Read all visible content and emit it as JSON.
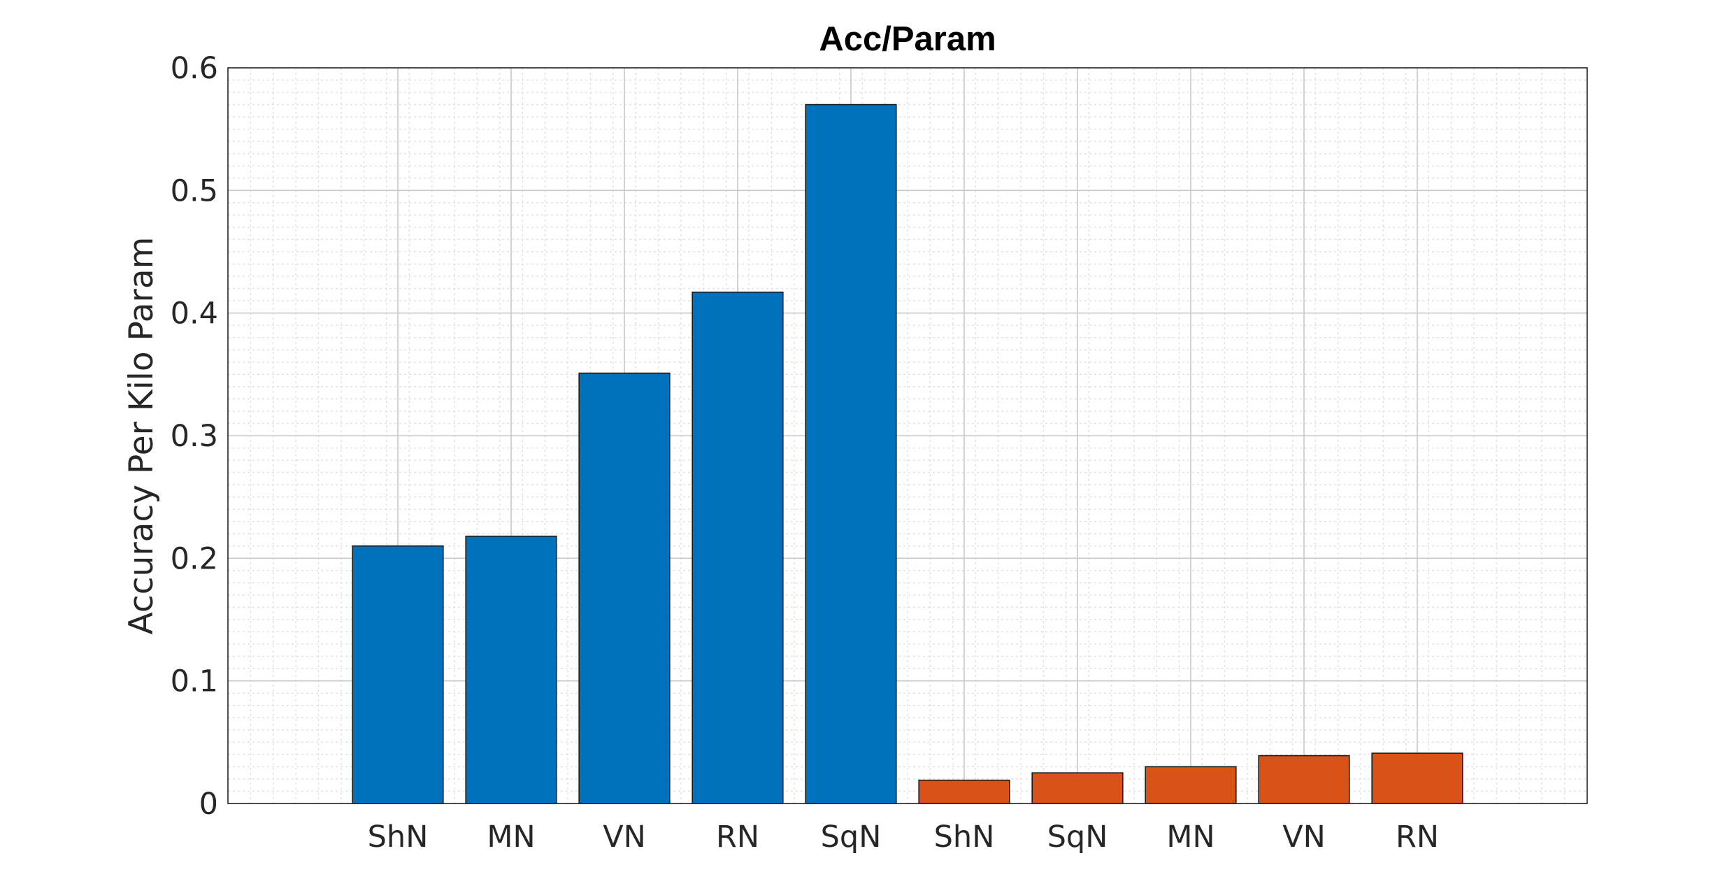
{
  "chart_data": {
    "type": "bar",
    "title": "Acc/Param",
    "xlabel": "",
    "ylabel": "Accuracy Per Kilo Param",
    "ylim": [
      0,
      0.6
    ],
    "yticks": [
      "0",
      "0.1",
      "0.2",
      "0.3",
      "0.4",
      "0.5",
      "0.6"
    ],
    "grid": "on (major and minor)",
    "categories": [
      "ShN",
      "MN",
      "VN",
      "RN",
      "SqN",
      "ShN",
      "SqN",
      "MN",
      "VN",
      "RN"
    ],
    "values": [
      0.21,
      0.218,
      0.351,
      0.417,
      0.57,
      0.019,
      0.025,
      0.03,
      0.039,
      0.041
    ],
    "bar_colors": [
      "#0072BD",
      "#0072BD",
      "#0072BD",
      "#0072BD",
      "#0072BD",
      "#D95319",
      "#D95319",
      "#D95319",
      "#D95319",
      "#D95319"
    ]
  }
}
